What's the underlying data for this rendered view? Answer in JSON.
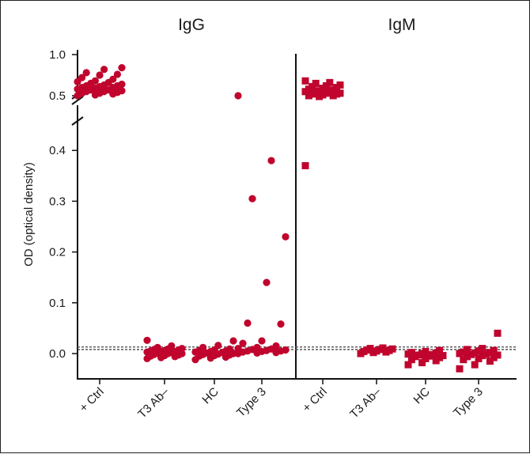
{
  "chart_data": {
    "type": "scatter",
    "ylabel": "OD (optical density)",
    "point_color": "#c0042d",
    "cutoff_color": "#555555",
    "categories": [
      "+ Ctrl",
      "T3 Ab–",
      "HC",
      "Type 3"
    ],
    "y_ticks_lower": [
      "0.0",
      "0.1",
      "0.2",
      "0.3",
      "0.4"
    ],
    "y_ticks_upper": [
      "0.5",
      "1.0"
    ],
    "ylim_lower": [
      -0.05,
      0.45
    ],
    "ylim_upper": [
      0.45,
      1.0
    ],
    "panels": [
      {
        "title": "IgG",
        "marker": "circle",
        "cutoffs": [
          0.008,
          0.013
        ],
        "groups": [
          {
            "category": "+ Ctrl",
            "values": [
              0.5,
              0.51,
              0.52,
              0.53,
              0.53,
              0.54,
              0.55,
              0.55,
              0.56,
              0.57,
              0.57,
              0.58,
              0.59,
              0.6,
              0.6,
              0.61,
              0.62,
              0.62,
              0.63,
              0.64,
              0.65,
              0.66,
              0.67,
              0.68,
              0.7,
              0.72,
              0.75,
              0.76,
              0.78,
              0.82,
              0.84
            ]
          },
          {
            "category": "T3 Ab–",
            "values": [
              -0.01,
              -0.008,
              -0.006,
              -0.005,
              -0.004,
              -0.003,
              -0.002,
              0.0,
              0.0,
              0.001,
              0.002,
              0.003,
              0.004,
              0.004,
              0.005,
              0.006,
              0.007,
              0.008,
              0.009,
              0.01,
              0.012,
              0.015,
              0.026
            ]
          },
          {
            "category": "HC",
            "values": [
              -0.012,
              -0.009,
              -0.007,
              -0.005,
              -0.004,
              -0.003,
              -0.002,
              -0.001,
              0.0,
              0.001,
              0.002,
              0.003,
              0.004,
              0.005,
              0.006,
              0.007,
              0.009,
              0.012,
              0.016,
              0.025
            ]
          },
          {
            "category": "Type 3",
            "values": [
              0.0,
              0.001,
              0.002,
              0.003,
              0.004,
              0.005,
              0.005,
              0.006,
              0.007,
              0.008,
              0.009,
              0.01,
              0.012,
              0.015,
              0.02,
              0.025,
              0.058,
              0.06,
              0.14,
              0.23,
              0.305,
              0.38,
              0.5
            ]
          }
        ]
      },
      {
        "title": "IgM",
        "marker": "square",
        "cutoffs": [
          0.008,
          0.013
        ],
        "groups": [
          {
            "category": "+ Ctrl",
            "values": [
              0.37,
              0.49,
              0.5,
              0.5,
              0.51,
              0.52,
              0.52,
              0.53,
              0.53,
              0.54,
              0.55,
              0.55,
              0.56,
              0.57,
              0.58,
              0.59,
              0.6,
              0.61,
              0.62,
              0.63,
              0.65,
              0.66,
              0.68
            ]
          },
          {
            "category": "T3 Ab–",
            "values": [
              0.0,
              0.002,
              0.003,
              0.004,
              0.005,
              0.006,
              0.007,
              0.008,
              0.009,
              0.01,
              0.011
            ]
          },
          {
            "category": "HC",
            "values": [
              -0.022,
              -0.018,
              -0.014,
              -0.012,
              -0.01,
              -0.008,
              -0.006,
              -0.005,
              -0.004,
              -0.003,
              -0.002,
              -0.001,
              0.0,
              0.001,
              0.002,
              0.004,
              0.006
            ]
          },
          {
            "category": "Type 3",
            "values": [
              -0.03,
              -0.022,
              -0.015,
              -0.012,
              -0.01,
              -0.008,
              -0.006,
              -0.004,
              -0.003,
              -0.002,
              -0.001,
              0.0,
              0.001,
              0.002,
              0.003,
              0.005,
              0.006,
              0.008,
              0.01,
              0.04
            ]
          }
        ]
      }
    ]
  }
}
